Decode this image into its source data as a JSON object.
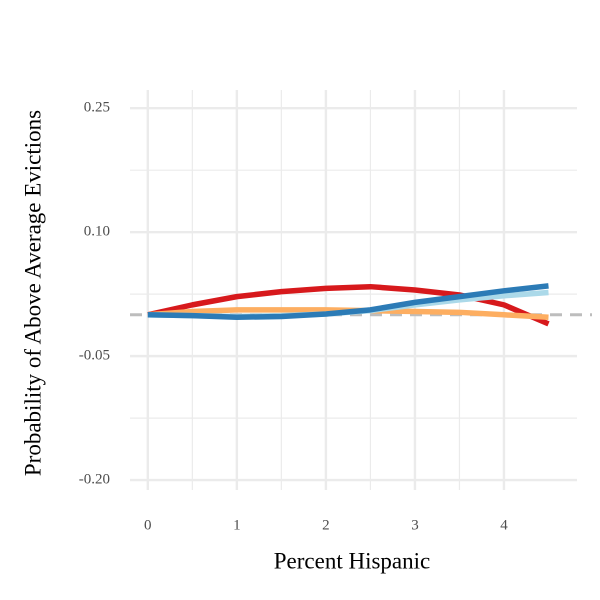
{
  "chart_data": {
    "type": "line",
    "x_label": "Percent Hispanic",
    "y_label": "Probability of Above Average Evictions",
    "x": [
      0,
      0.5,
      1,
      1.5,
      2,
      2.5,
      3,
      3.5,
      4,
      4.5
    ],
    "series": [
      {
        "color": "#d7191c",
        "values": [
          0,
          0.012,
          0.022,
          0.028,
          0.032,
          0.034,
          0.03,
          0.024,
          0.012,
          -0.011
        ]
      },
      {
        "color": "#fdae61",
        "values": [
          0,
          0.004,
          0.006,
          0.006,
          0.006,
          0.005,
          0.004,
          0.003,
          0.0,
          -0.003
        ]
      },
      {
        "color": "#abd9e9",
        "values": [
          0,
          -0.001,
          -0.002,
          -0.001,
          0.001,
          0.005,
          0.012,
          0.018,
          0.023,
          0.027
        ]
      },
      {
        "color": "#2c7bb6",
        "values": [
          0,
          -0.001,
          -0.003,
          -0.002,
          0.001,
          0.006,
          0.015,
          0.022,
          0.029,
          0.035
        ]
      }
    ],
    "xlim": [
      -0.2,
      4.82
    ],
    "xticks": [
      0,
      1,
      2,
      3,
      4
    ],
    "ylim": [
      -0.212,
      0.272
    ],
    "yticks": [
      {
        "value": -0.2,
        "label": "-0.20"
      },
      -0.05,
      {
        "value": 0.1,
        "label": "0.10"
      },
      0.25
    ],
    "reference_line": 0,
    "grid": true
  }
}
